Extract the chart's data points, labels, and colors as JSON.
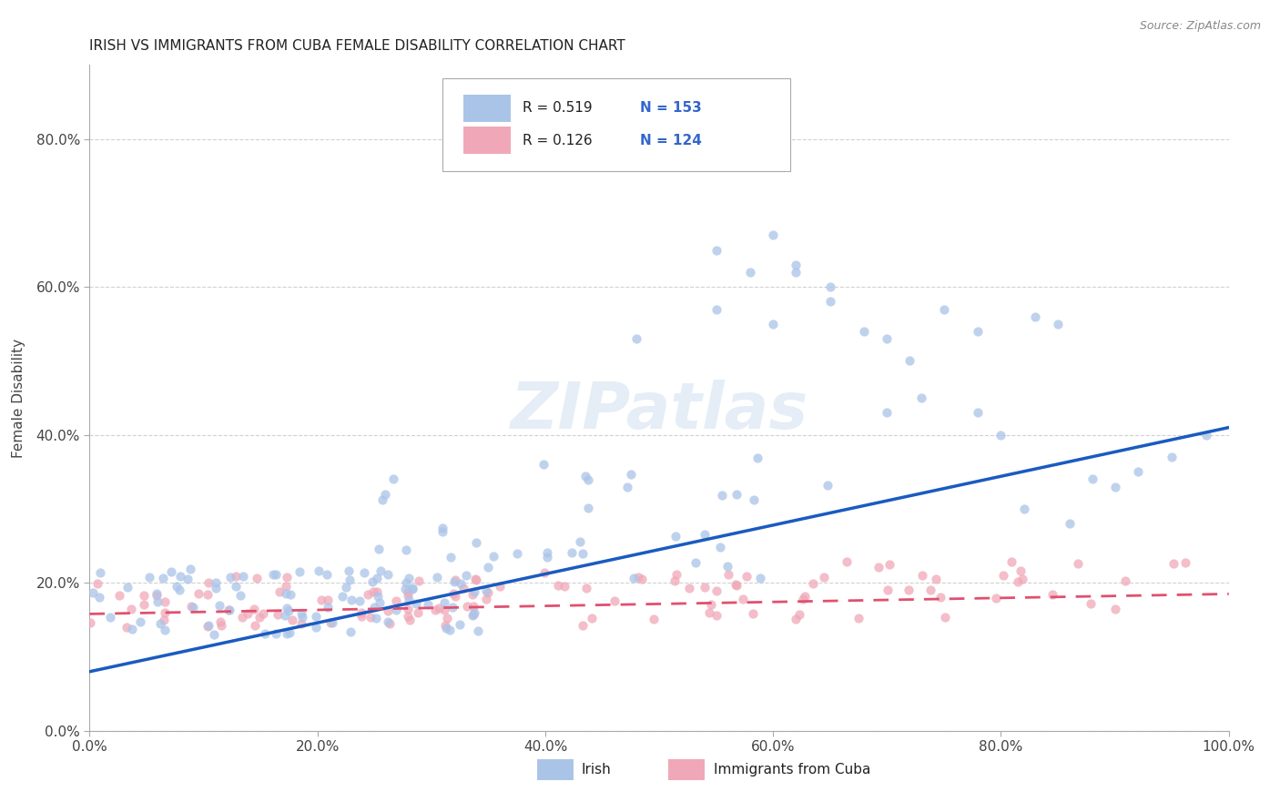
{
  "title": "IRISH VS IMMIGRANTS FROM CUBA FEMALE DISABILITY CORRELATION CHART",
  "source": "Source: ZipAtlas.com",
  "ylabel": "Female Disability",
  "xlim": [
    0.0,
    1.0
  ],
  "ylim": [
    0.0,
    0.9
  ],
  "xticks": [
    0.0,
    0.2,
    0.4,
    0.6,
    0.8,
    1.0
  ],
  "xtick_labels": [
    "0.0%",
    "20.0%",
    "40.0%",
    "60.0%",
    "80.0%",
    "100.0%"
  ],
  "yticks": [
    0.0,
    0.2,
    0.4,
    0.6,
    0.8
  ],
  "ytick_labels": [
    "0.0%",
    "20.0%",
    "40.0%",
    "60.0%",
    "80.0%"
  ],
  "legend_r1": "R = 0.519",
  "legend_n1": "N = 153",
  "legend_r2": "R = 0.126",
  "legend_n2": "N = 124",
  "irish_color": "#aac4e8",
  "cuba_color": "#f0a8b8",
  "trendline_irish_color": "#1a5bbf",
  "trendline_cuba_color": "#e05070",
  "grid_color": "#cccccc",
  "watermark": "ZIPatlas",
  "legend_label1": "Irish",
  "legend_label2": "Immigrants from Cuba",
  "irish_trend_x": [
    0.0,
    1.0
  ],
  "irish_trend_y": [
    0.08,
    0.41
  ],
  "cuba_trend_x": [
    0.0,
    1.0
  ],
  "cuba_trend_y": [
    0.158,
    0.185
  ]
}
